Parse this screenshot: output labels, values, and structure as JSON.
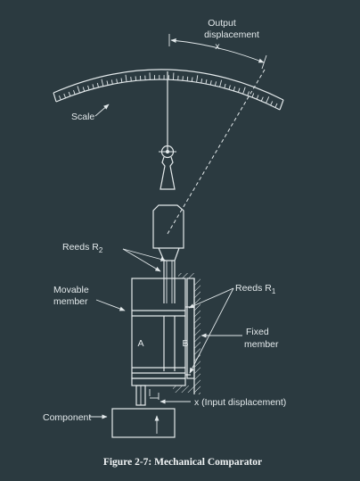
{
  "labels": {
    "output_line1": "Output",
    "output_line2": "displacement",
    "output_x": "x",
    "scale": "Scale",
    "reeds_r2": "Reeds R",
    "reeds_r2_sub": "2",
    "reeds_r1": "Reeds R",
    "reeds_r1_sub": "1",
    "movable_line1": "Movable",
    "movable_line2": "member",
    "a": "A",
    "b": "B",
    "fixed_line1": "Fixed",
    "fixed_line2": "member",
    "input_disp": "x (Input displacement)",
    "component": "Component"
  },
  "caption": "Figure 2-7: Mechanical Comparator",
  "colors": {
    "background": "#2b3a40",
    "ink": "#e3e9eb"
  }
}
